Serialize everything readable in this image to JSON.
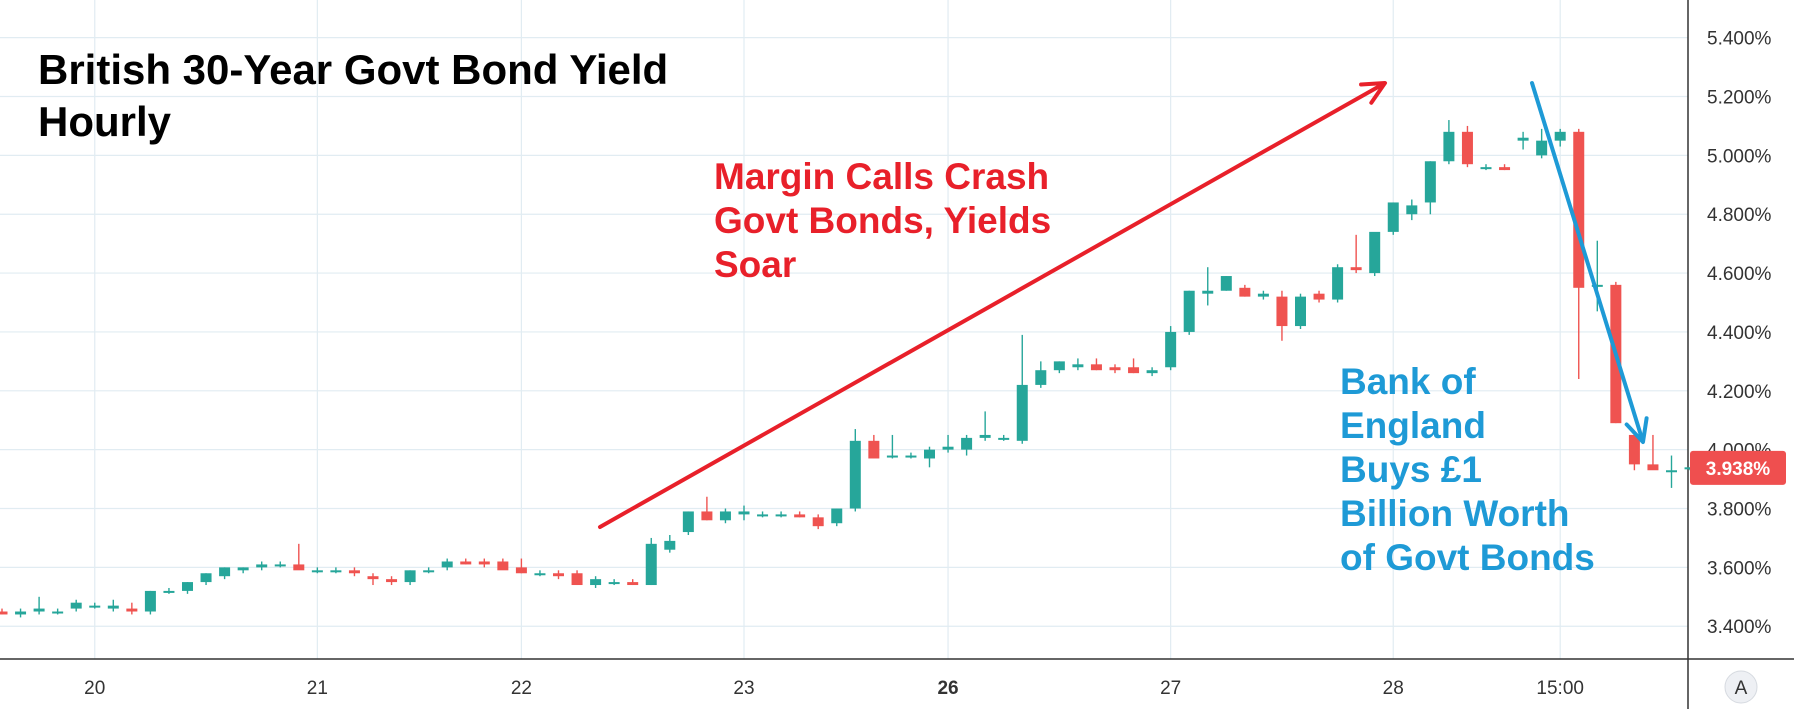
{
  "chart_data": {
    "type": "candlestick",
    "title": [
      "British 30-Year Govt Bond Yield",
      "Hourly"
    ],
    "annotations": [
      {
        "id": "margin",
        "color": "#e8202a",
        "lines": [
          "Margin Calls Crash",
          "Govt Bonds, Yields",
          "Soar"
        ]
      },
      {
        "id": "boe",
        "color": "#1e9ad6",
        "lines": [
          "Bank of",
          "England",
          "Buys £1",
          "Billion Worth",
          "of Govt Bonds"
        ]
      }
    ],
    "y_axis": {
      "unit": "%",
      "range": [
        3.36,
        5.46
      ],
      "ticks": [
        "3.400%",
        "3.600%",
        "3.800%",
        "4.000%",
        "4.200%",
        "4.400%",
        "4.600%",
        "4.800%",
        "5.000%",
        "5.200%",
        "5.400%"
      ],
      "tick_values": [
        3.4,
        3.6,
        3.8,
        4.0,
        4.2,
        4.4,
        4.6,
        4.8,
        5.0,
        5.2,
        5.4
      ],
      "last_price_label": "3.938%",
      "last_price": 3.938
    },
    "x_axis": {
      "ticks": [
        {
          "label": "20",
          "bold": false,
          "bar": 5
        },
        {
          "label": "21",
          "bold": false,
          "bar": 17
        },
        {
          "label": "22",
          "bold": false,
          "bar": 28
        },
        {
          "label": "23",
          "bold": false,
          "bar": 40
        },
        {
          "label": "26",
          "bold": true,
          "bar": 51
        },
        {
          "label": "27",
          "bold": false,
          "bar": 63
        },
        {
          "label": "28",
          "bold": false,
          "bar": 75
        },
        {
          "label": "15:00",
          "bold": false,
          "bar": 84
        }
      ]
    },
    "grid": true,
    "corner_label": "A",
    "colors": {
      "up": "#26a69a",
      "down": "#ef5350",
      "grid": "#e1ecf2",
      "arrow_red": "#e8202a",
      "arrow_blue": "#1e9ad6"
    },
    "candles": [
      [
        3.45,
        3.46,
        3.44,
        3.44
      ],
      [
        3.44,
        3.46,
        3.43,
        3.45
      ],
      [
        3.45,
        3.5,
        3.44,
        3.46
      ],
      [
        3.45,
        3.46,
        3.44,
        3.45
      ],
      [
        3.46,
        3.49,
        3.45,
        3.48
      ],
      [
        3.47,
        3.48,
        3.46,
        3.47
      ],
      [
        3.46,
        3.49,
        3.45,
        3.47
      ],
      [
        3.46,
        3.48,
        3.44,
        3.45
      ],
      [
        3.45,
        3.52,
        3.44,
        3.52
      ],
      [
        3.52,
        3.53,
        3.51,
        3.52
      ],
      [
        3.52,
        3.55,
        3.51,
        3.55
      ],
      [
        3.55,
        3.58,
        3.54,
        3.58
      ],
      [
        3.57,
        3.6,
        3.56,
        3.6
      ],
      [
        3.59,
        3.6,
        3.58,
        3.6
      ],
      [
        3.6,
        3.62,
        3.59,
        3.61
      ],
      [
        3.61,
        3.62,
        3.6,
        3.61
      ],
      [
        3.61,
        3.68,
        3.6,
        3.59
      ],
      [
        3.59,
        3.6,
        3.58,
        3.59
      ],
      [
        3.59,
        3.6,
        3.58,
        3.59
      ],
      [
        3.59,
        3.6,
        3.57,
        3.58
      ],
      [
        3.57,
        3.58,
        3.54,
        3.56
      ],
      [
        3.56,
        3.57,
        3.54,
        3.55
      ],
      [
        3.55,
        3.59,
        3.54,
        3.59
      ],
      [
        3.59,
        3.6,
        3.58,
        3.59
      ],
      [
        3.6,
        3.63,
        3.59,
        3.62
      ],
      [
        3.62,
        3.63,
        3.61,
        3.61
      ],
      [
        3.62,
        3.63,
        3.6,
        3.61
      ],
      [
        3.62,
        3.63,
        3.6,
        3.59
      ],
      [
        3.6,
        3.63,
        3.58,
        3.58
      ],
      [
        3.58,
        3.59,
        3.57,
        3.58
      ],
      [
        3.58,
        3.59,
        3.56,
        3.57
      ],
      [
        3.58,
        3.59,
        3.54,
        3.54
      ],
      [
        3.54,
        3.57,
        3.53,
        3.56
      ],
      [
        3.55,
        3.56,
        3.54,
        3.55
      ],
      [
        3.55,
        3.56,
        3.54,
        3.54
      ],
      [
        3.54,
        3.7,
        3.54,
        3.68
      ],
      [
        3.66,
        3.71,
        3.65,
        3.69
      ],
      [
        3.72,
        3.79,
        3.71,
        3.79
      ],
      [
        3.79,
        3.84,
        3.76,
        3.76
      ],
      [
        3.76,
        3.8,
        3.75,
        3.79
      ],
      [
        3.78,
        3.81,
        3.76,
        3.79
      ],
      [
        3.78,
        3.79,
        3.77,
        3.78
      ],
      [
        3.78,
        3.79,
        3.77,
        3.78
      ],
      [
        3.78,
        3.79,
        3.77,
        3.77
      ],
      [
        3.77,
        3.78,
        3.73,
        3.74
      ],
      [
        3.75,
        3.8,
        3.74,
        3.8
      ],
      [
        3.8,
        4.07,
        3.79,
        4.03
      ],
      [
        4.03,
        4.05,
        3.97,
        3.97
      ],
      [
        3.98,
        4.05,
        3.97,
        3.98
      ],
      [
        3.98,
        3.99,
        3.97,
        3.98
      ],
      [
        3.97,
        4.01,
        3.94,
        4.0
      ],
      [
        4.0,
        4.05,
        3.99,
        4.01
      ],
      [
        4.0,
        4.05,
        3.98,
        4.04
      ],
      [
        4.04,
        4.13,
        4.03,
        4.05
      ],
      [
        4.04,
        4.05,
        4.03,
        4.04
      ],
      [
        4.03,
        4.39,
        4.02,
        4.22
      ],
      [
        4.22,
        4.3,
        4.21,
        4.27
      ],
      [
        4.27,
        4.3,
        4.26,
        4.3
      ],
      [
        4.28,
        4.31,
        4.27,
        4.29
      ],
      [
        4.29,
        4.31,
        4.27,
        4.27
      ],
      [
        4.28,
        4.29,
        4.26,
        4.27
      ],
      [
        4.28,
        4.31,
        4.26,
        4.26
      ],
      [
        4.26,
        4.28,
        4.25,
        4.27
      ],
      [
        4.28,
        4.42,
        4.27,
        4.4
      ],
      [
        4.4,
        4.54,
        4.39,
        4.54
      ],
      [
        4.53,
        4.62,
        4.49,
        4.54
      ],
      [
        4.54,
        4.59,
        4.54,
        4.59
      ],
      [
        4.55,
        4.56,
        4.52,
        4.52
      ],
      [
        4.52,
        4.54,
        4.51,
        4.53
      ],
      [
        4.52,
        4.54,
        4.37,
        4.42
      ],
      [
        4.42,
        4.53,
        4.41,
        4.52
      ],
      [
        4.53,
        4.54,
        4.5,
        4.51
      ],
      [
        4.51,
        4.63,
        4.5,
        4.62
      ],
      [
        4.62,
        4.73,
        4.6,
        4.61
      ],
      [
        4.6,
        4.73,
        4.59,
        4.74
      ],
      [
        4.74,
        4.84,
        4.73,
        4.84
      ],
      [
        4.8,
        4.85,
        4.78,
        4.83
      ],
      [
        4.84,
        4.98,
        4.8,
        4.98
      ],
      [
        4.98,
        5.12,
        4.97,
        5.08
      ],
      [
        5.08,
        5.1,
        4.96,
        4.97
      ],
      [
        4.96,
        4.97,
        4.95,
        4.96
      ],
      [
        4.96,
        4.97,
        4.95,
        4.95
      ],
      [
        5.05,
        5.08,
        5.02,
        5.06
      ],
      [
        5.0,
        5.09,
        4.99,
        5.05
      ],
      [
        5.05,
        5.09,
        5.03,
        5.08
      ],
      [
        5.08,
        5.09,
        4.24,
        4.55
      ],
      [
        4.56,
        4.71,
        4.47,
        4.56
      ],
      [
        4.56,
        4.57,
        4.09,
        4.09
      ],
      [
        4.05,
        4.06,
        3.93,
        3.95
      ],
      [
        3.95,
        4.05,
        3.94,
        3.93
      ],
      [
        3.93,
        3.98,
        3.87,
        3.93
      ],
      [
        3.94,
        3.94,
        3.93,
        3.94
      ]
    ]
  }
}
